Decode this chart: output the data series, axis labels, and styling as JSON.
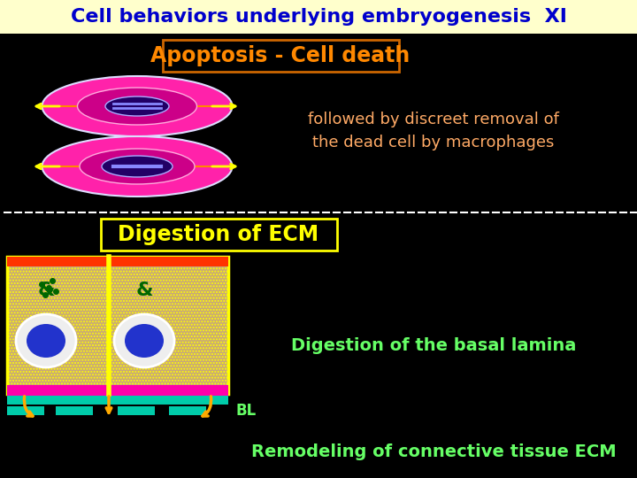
{
  "bg_color": "#000000",
  "title_bg": "#ffffcc",
  "title_text": "Cell behaviors underlying embryogenesis  XI",
  "title_color": "#0000cc",
  "title_fontsize": 16,
  "apoptosis_box_border": "#cc6600",
  "apoptosis_box_bg": "#000000",
  "apoptosis_text": "Apoptosis - Cell death",
  "apoptosis_color": "#ff8800",
  "apoptosis_fontsize": 17,
  "apoptosis_desc": "followed by discreet removal of\nthe dead cell by macrophages",
  "apoptosis_desc_color": "#ffaa66",
  "apoptosis_desc_fontsize": 13,
  "dashed_line_color": "#ffffff",
  "digestion_box_border": "#ffff00",
  "digestion_box_bg": "#000000",
  "digestion_text": "Digestion of ECM",
  "digestion_color": "#ffff00",
  "digestion_fontsize": 17,
  "digestion_desc": "Digestion of the basal lamina",
  "digestion_desc_color": "#66ff66",
  "digestion_desc_fontsize": 14,
  "bl_text": "BL",
  "bl_color": "#66ff66",
  "bl_fontsize": 12,
  "remodeling_text": "Remodeling of connective tissue ECM",
  "remodeling_color": "#66ff66",
  "remodeling_fontsize": 14,
  "ecm_fill": "#c8a878",
  "ecm_border": "#ffff00",
  "top_strip_color": "#ff3300",
  "pink_strip_color": "#ff00aa",
  "bottom_strip_color": "#00ccaa",
  "cell_nucleus_color": "#2233cc",
  "divider_color": "#ffff00",
  "arrow_color": "#ffaa00",
  "enzyme_color": "#006600"
}
